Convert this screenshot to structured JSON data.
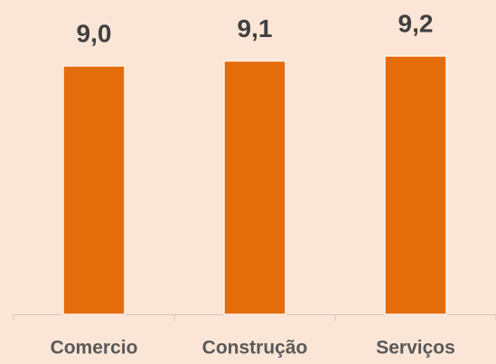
{
  "chart_data": {
    "type": "bar",
    "categories": [
      "Comercio",
      "Construção",
      "Serviços"
    ],
    "values": [
      9.0,
      9.1,
      9.2
    ],
    "value_labels": [
      "9,0",
      "9,1",
      "9,2"
    ],
    "color": "#e46c0a",
    "ylim": [
      4,
      10
    ]
  }
}
